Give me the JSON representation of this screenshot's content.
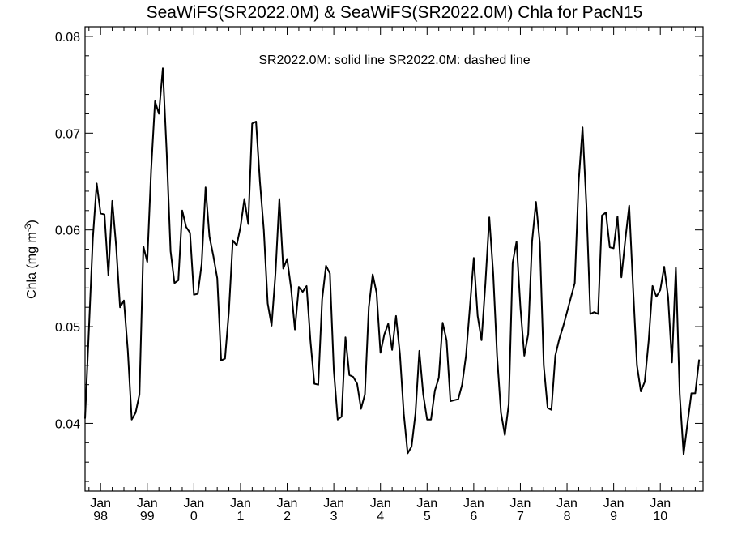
{
  "chart_data": {
    "type": "line",
    "title": "SeaWiFS(SR2022.0M) & SeaWiFS(SR2022.0M)  Chla for PacN15",
    "annotation": "SR2022.0M: solid line   SR2022.0M: dashed line",
    "ylabel_main": "Chla (mg m",
    "ylabel_sup": "-3",
    "ylabel_close": ")",
    "ylim": [
      0.033,
      0.081
    ],
    "yticks": [
      {
        "value": 0.04,
        "label": "0.04"
      },
      {
        "value": 0.05,
        "label": "0.05"
      },
      {
        "value": 0.06,
        "label": "0.06"
      },
      {
        "value": 0.07,
        "label": "0.07"
      },
      {
        "value": 0.08,
        "label": "0.08"
      }
    ],
    "x_start": "1997-09",
    "x_end": "2010-12",
    "xticks": [
      {
        "date": "1998-01",
        "month": "Jan",
        "year": "98"
      },
      {
        "date": "1999-01",
        "month": "Jan",
        "year": "99"
      },
      {
        "date": "2000-01",
        "month": "Jan",
        "year": "0"
      },
      {
        "date": "2001-01",
        "month": "Jan",
        "year": "1"
      },
      {
        "date": "2002-01",
        "month": "Jan",
        "year": "2"
      },
      {
        "date": "2003-01",
        "month": "Jan",
        "year": "3"
      },
      {
        "date": "2004-01",
        "month": "Jan",
        "year": "4"
      },
      {
        "date": "2005-01",
        "month": "Jan",
        "year": "5"
      },
      {
        "date": "2006-01",
        "month": "Jan",
        "year": "6"
      },
      {
        "date": "2007-01",
        "month": "Jan",
        "year": "7"
      },
      {
        "date": "2008-01",
        "month": "Jan",
        "year": "8"
      },
      {
        "date": "2009-01",
        "month": "Jan",
        "year": "9"
      },
      {
        "date": "2010-01",
        "month": "Jan",
        "year": "10"
      }
    ],
    "series": [
      {
        "style": "solid",
        "color": "#000000",
        "points": [
          [
            "1997-09",
            0.0405
          ],
          [
            "1997-10",
            0.0498
          ],
          [
            "1997-11",
            0.0591
          ],
          [
            "1997-12",
            0.0648
          ],
          [
            "1998-01",
            0.0617
          ],
          [
            "1998-02",
            0.0616
          ],
          [
            "1998-03",
            0.0553
          ],
          [
            "1998-04",
            0.063
          ],
          [
            "1998-05",
            0.0583
          ],
          [
            "1998-06",
            0.052
          ],
          [
            "1998-07",
            0.0527
          ],
          [
            "1998-08",
            0.0475
          ],
          [
            "1998-09",
            0.0404
          ],
          [
            "1998-10",
            0.0411
          ],
          [
            "1998-11",
            0.043
          ],
          [
            "1998-12",
            0.0583
          ],
          [
            "1999-01",
            0.0567
          ],
          [
            "1999-02",
            0.0662
          ],
          [
            "1999-03",
            0.0733
          ],
          [
            "1999-04",
            0.072
          ],
          [
            "1999-05",
            0.0767
          ],
          [
            "1999-06",
            0.068
          ],
          [
            "1999-07",
            0.0578
          ],
          [
            "1999-08",
            0.0545
          ],
          [
            "1999-09",
            0.0548
          ],
          [
            "1999-10",
            0.062
          ],
          [
            "1999-11",
            0.0603
          ],
          [
            "1999-12",
            0.0597
          ],
          [
            "2000-01",
            0.0533
          ],
          [
            "2000-02",
            0.0534
          ],
          [
            "2000-03",
            0.0565
          ],
          [
            "2000-04",
            0.0644
          ],
          [
            "2000-05",
            0.0593
          ],
          [
            "2000-06",
            0.0573
          ],
          [
            "2000-07",
            0.055
          ],
          [
            "2000-08",
            0.0465
          ],
          [
            "2000-09",
            0.0467
          ],
          [
            "2000-10",
            0.0516
          ],
          [
            "2000-11",
            0.0589
          ],
          [
            "2000-12",
            0.0584
          ],
          [
            "2001-01",
            0.0603
          ],
          [
            "2001-02",
            0.0632
          ],
          [
            "2001-03",
            0.0606
          ],
          [
            "2001-04",
            0.071
          ],
          [
            "2001-05",
            0.0712
          ],
          [
            "2001-06",
            0.065
          ],
          [
            "2001-07",
            0.06
          ],
          [
            "2001-08",
            0.0524
          ],
          [
            "2001-09",
            0.0501
          ],
          [
            "2001-10",
            0.0555
          ],
          [
            "2001-11",
            0.0632
          ],
          [
            "2001-12",
            0.056
          ],
          [
            "2002-01",
            0.057
          ],
          [
            "2002-02",
            0.054
          ],
          [
            "2002-03",
            0.0497
          ],
          [
            "2002-04",
            0.0541
          ],
          [
            "2002-05",
            0.0536
          ],
          [
            "2002-06",
            0.0542
          ],
          [
            "2002-07",
            0.0485
          ],
          [
            "2002-08",
            0.0441
          ],
          [
            "2002-09",
            0.044
          ],
          [
            "2002-10",
            0.0528
          ],
          [
            "2002-11",
            0.0563
          ],
          [
            "2002-12",
            0.0555
          ],
          [
            "2003-01",
            0.0455
          ],
          [
            "2003-02",
            0.0404
          ],
          [
            "2003-03",
            0.0407
          ],
          [
            "2003-04",
            0.0489
          ],
          [
            "2003-05",
            0.045
          ],
          [
            "2003-06",
            0.0448
          ],
          [
            "2003-07",
            0.0441
          ],
          [
            "2003-08",
            0.0415
          ],
          [
            "2003-09",
            0.043
          ],
          [
            "2003-10",
            0.052
          ],
          [
            "2003-11",
            0.0554
          ],
          [
            "2003-12",
            0.0535
          ],
          [
            "2004-01",
            0.0473
          ],
          [
            "2004-02",
            0.0492
          ],
          [
            "2004-03",
            0.0503
          ],
          [
            "2004-04",
            0.0476
          ],
          [
            "2004-05",
            0.0511
          ],
          [
            "2004-06",
            0.0472
          ],
          [
            "2004-07",
            0.041
          ],
          [
            "2004-08",
            0.0369
          ],
          [
            "2004-09",
            0.0376
          ],
          [
            "2004-10",
            0.041
          ],
          [
            "2004-11",
            0.0475
          ],
          [
            "2004-12",
            0.043
          ],
          [
            "2005-01",
            0.0404
          ],
          [
            "2005-02",
            0.0404
          ],
          [
            "2005-03",
            0.0434
          ],
          [
            "2005-04",
            0.0447
          ],
          [
            "2005-05",
            0.0504
          ],
          [
            "2005-06",
            0.0486
          ],
          [
            "2005-07",
            0.0423
          ],
          [
            "2005-08",
            0.0424
          ],
          [
            "2005-09",
            0.0425
          ],
          [
            "2005-10",
            0.044
          ],
          [
            "2005-11",
            0.047
          ],
          [
            "2005-12",
            0.052
          ],
          [
            "2006-01",
            0.0571
          ],
          [
            "2006-02",
            0.0511
          ],
          [
            "2006-03",
            0.0486
          ],
          [
            "2006-04",
            0.0545
          ],
          [
            "2006-05",
            0.0613
          ],
          [
            "2006-06",
            0.0555
          ],
          [
            "2006-07",
            0.047
          ],
          [
            "2006-08",
            0.0411
          ],
          [
            "2006-09",
            0.0388
          ],
          [
            "2006-10",
            0.042
          ],
          [
            "2006-11",
            0.0566
          ],
          [
            "2006-12",
            0.0588
          ],
          [
            "2007-01",
            0.052
          ],
          [
            "2007-02",
            0.047
          ],
          [
            "2007-03",
            0.0492
          ],
          [
            "2007-04",
            0.0588
          ],
          [
            "2007-05",
            0.0629
          ],
          [
            "2007-06",
            0.0586
          ],
          [
            "2007-07",
            0.046
          ],
          [
            "2007-08",
            0.0416
          ],
          [
            "2007-09",
            0.0414
          ],
          [
            "2007-10",
            0.047
          ],
          [
            "2007-11",
            0.0487
          ],
          [
            "2007-12",
            0.05
          ],
          [
            "2008-01",
            0.0515
          ],
          [
            "2008-02",
            0.053
          ],
          [
            "2008-03",
            0.0545
          ],
          [
            "2008-04",
            0.065
          ],
          [
            "2008-05",
            0.0706
          ],
          [
            "2008-06",
            0.0625
          ],
          [
            "2008-07",
            0.0513
          ],
          [
            "2008-08",
            0.0515
          ],
          [
            "2008-09",
            0.0513
          ],
          [
            "2008-10",
            0.0615
          ],
          [
            "2008-11",
            0.0618
          ],
          [
            "2008-12",
            0.0582
          ],
          [
            "2009-01",
            0.0581
          ],
          [
            "2009-02",
            0.0614
          ],
          [
            "2009-03",
            0.0551
          ],
          [
            "2009-04",
            0.059
          ],
          [
            "2009-05",
            0.0625
          ],
          [
            "2009-06",
            0.054
          ],
          [
            "2009-07",
            0.046
          ],
          [
            "2009-08",
            0.0433
          ],
          [
            "2009-09",
            0.0443
          ],
          [
            "2009-10",
            0.0485
          ],
          [
            "2009-11",
            0.0542
          ],
          [
            "2009-12",
            0.0531
          ],
          [
            "2010-01",
            0.0538
          ],
          [
            "2010-02",
            0.0562
          ],
          [
            "2010-03",
            0.0531
          ],
          [
            "2010-04",
            0.0463
          ],
          [
            "2010-05",
            0.0561
          ],
          [
            "2010-06",
            0.043
          ],
          [
            "2010-07",
            0.0368
          ],
          [
            "2010-08",
            0.04
          ],
          [
            "2010-09",
            0.0431
          ],
          [
            "2010-10",
            0.0431
          ],
          [
            "2010-11",
            0.0466
          ]
        ]
      }
    ]
  }
}
